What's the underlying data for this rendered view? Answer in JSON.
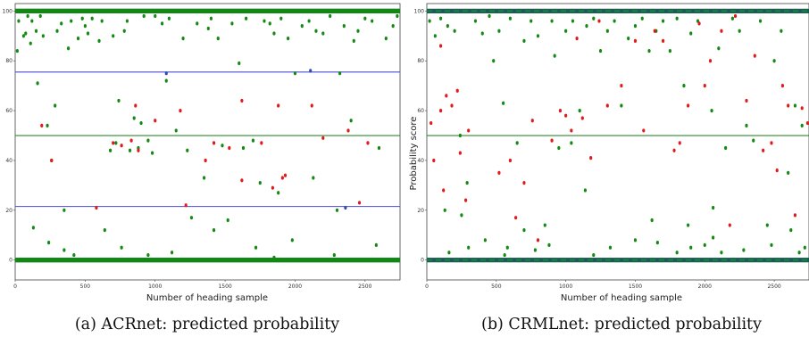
{
  "chart_data": [
    {
      "type": "scatter",
      "caption": "(a) ACRnet: predicted probability",
      "xlabel": "Number of heading sample",
      "ylabel": "",
      "xlim": [
        0,
        2750
      ],
      "ylim": [
        -8,
        103
      ],
      "xticks": [
        0,
        500,
        1000,
        1500,
        2000,
        2500
      ],
      "yticks": [
        0,
        20,
        40,
        60,
        80,
        100
      ],
      "colors": {
        "correct": "#138a13",
        "wrong": "#e01b1b",
        "band": "#1f7a3a",
        "hline_blue": "#4b4bd6",
        "hline_green": "#2d8a2d",
        "outlier": "#2a4fb3"
      },
      "band_color_dark": false,
      "hlines": [
        {
          "y": 75.5,
          "color": "#4b4bd6"
        },
        {
          "y": 50,
          "color": "#2d8a2d"
        },
        {
          "y": 21.5,
          "color": "#4b4bd6"
        }
      ],
      "bands": [
        100,
        0
      ],
      "points_correct": [
        [
          15,
          84
        ],
        [
          25,
          96
        ],
        [
          60,
          90
        ],
        [
          75,
          91
        ],
        [
          90,
          98
        ],
        [
          110,
          87
        ],
        [
          120,
          96
        ],
        [
          150,
          92
        ],
        [
          160,
          71
        ],
        [
          180,
          98
        ],
        [
          200,
          90
        ],
        [
          230,
          54
        ],
        [
          260,
          40
        ],
        [
          285,
          62
        ],
        [
          300,
          92
        ],
        [
          330,
          95
        ],
        [
          350,
          20
        ],
        [
          380,
          85
        ],
        [
          400,
          96
        ],
        [
          450,
          89
        ],
        [
          480,
          97
        ],
        [
          500,
          94
        ],
        [
          520,
          91
        ],
        [
          550,
          97
        ],
        [
          600,
          88
        ],
        [
          620,
          96
        ],
        [
          680,
          44
        ],
        [
          700,
          90
        ],
        [
          720,
          47
        ],
        [
          740,
          64
        ],
        [
          780,
          92
        ],
        [
          800,
          96
        ],
        [
          820,
          44
        ],
        [
          850,
          57
        ],
        [
          880,
          45
        ],
        [
          900,
          55
        ],
        [
          920,
          98
        ],
        [
          950,
          48
        ],
        [
          980,
          43
        ],
        [
          1000,
          98
        ],
        [
          1050,
          95
        ],
        [
          1080,
          72
        ],
        [
          1100,
          97
        ],
        [
          1150,
          52
        ],
        [
          1200,
          89
        ],
        [
          1230,
          44
        ],
        [
          1260,
          17
        ],
        [
          1300,
          95
        ],
        [
          1350,
          33
        ],
        [
          1380,
          93
        ],
        [
          1400,
          97
        ],
        [
          1450,
          89
        ],
        [
          1480,
          46
        ],
        [
          1520,
          16
        ],
        [
          1550,
          95
        ],
        [
          1600,
          79
        ],
        [
          1630,
          45
        ],
        [
          1650,
          97
        ],
        [
          1700,
          48
        ],
        [
          1750,
          31
        ],
        [
          1780,
          96
        ],
        [
          1820,
          95
        ],
        [
          1850,
          91
        ],
        [
          1880,
          27
        ],
        [
          1900,
          97
        ],
        [
          1950,
          89
        ],
        [
          2000,
          75
        ],
        [
          2050,
          94
        ],
        [
          2100,
          96
        ],
        [
          2130,
          33
        ],
        [
          2150,
          92
        ],
        [
          2200,
          91
        ],
        [
          2250,
          98
        ],
        [
          2300,
          20
        ],
        [
          2320,
          75
        ],
        [
          2350,
          94
        ],
        [
          2400,
          56
        ],
        [
          2420,
          88
        ],
        [
          2450,
          92
        ],
        [
          2500,
          97
        ],
        [
          2550,
          96
        ],
        [
          2600,
          45
        ],
        [
          2650,
          89
        ],
        [
          2700,
          94
        ],
        [
          2730,
          98
        ],
        [
          130,
          13
        ],
        [
          240,
          7
        ],
        [
          420,
          2
        ],
        [
          640,
          12
        ],
        [
          760,
          5
        ],
        [
          1120,
          3
        ],
        [
          1420,
          12
        ],
        [
          1720,
          5
        ],
        [
          1980,
          8
        ],
        [
          2280,
          2
        ],
        [
          2580,
          6
        ],
        [
          350,
          4
        ],
        [
          950,
          2
        ],
        [
          1850,
          1
        ]
      ],
      "points_wrong": [
        [
          190,
          54
        ],
        [
          260,
          40
        ],
        [
          580,
          21
        ],
        [
          700,
          47
        ],
        [
          760,
          46
        ],
        [
          830,
          48
        ],
        [
          860,
          62
        ],
        [
          1000,
          56
        ],
        [
          1180,
          60
        ],
        [
          1360,
          40
        ],
        [
          1420,
          47
        ],
        [
          1530,
          45
        ],
        [
          1620,
          32
        ],
        [
          1840,
          29
        ],
        [
          1880,
          62
        ],
        [
          1930,
          34
        ],
        [
          2120,
          62
        ],
        [
          2200,
          49
        ],
        [
          2380,
          52
        ],
        [
          2460,
          23
        ],
        [
          2520,
          47
        ],
        [
          1620,
          64
        ],
        [
          1910,
          33
        ],
        [
          1220,
          22
        ],
        [
          880,
          44
        ],
        [
          1760,
          47
        ]
      ],
      "points_outlier": [
        [
          1080,
          75
        ],
        [
          2110,
          76
        ],
        [
          2360,
          21
        ]
      ]
    },
    {
      "type": "scatter",
      "caption": "(b) CRMLnet: predicted probability",
      "xlabel": "Number of heading sample",
      "ylabel": "Probability score",
      "xlim": [
        0,
        2750
      ],
      "ylim": [
        -8,
        103
      ],
      "xticks": [
        0,
        500,
        1000,
        1500,
        2000,
        2500
      ],
      "yticks": [
        0,
        20,
        40,
        60,
        80,
        100
      ],
      "colors": {
        "correct": "#138a13",
        "wrong": "#e01b1b",
        "band": "#1e5a55",
        "hline_blue": "#4b4bd6",
        "hline_green": "#2d8a2d",
        "outlier": "#2a4fb3"
      },
      "band_color_dark": true,
      "hlines": [
        {
          "y": 50,
          "color": "#2d8a2d"
        }
      ],
      "bands": [
        100,
        0
      ],
      "points_correct": [
        [
          20,
          96
        ],
        [
          60,
          90
        ],
        [
          100,
          97
        ],
        [
          150,
          94
        ],
        [
          200,
          92
        ],
        [
          240,
          50
        ],
        [
          290,
          31
        ],
        [
          300,
          5
        ],
        [
          350,
          96
        ],
        [
          400,
          91
        ],
        [
          450,
          98
        ],
        [
          480,
          80
        ],
        [
          520,
          92
        ],
        [
          550,
          63
        ],
        [
          600,
          97
        ],
        [
          650,
          47
        ],
        [
          700,
          88
        ],
        [
          750,
          96
        ],
        [
          800,
          90
        ],
        [
          850,
          14
        ],
        [
          900,
          96
        ],
        [
          920,
          82
        ],
        [
          950,
          45
        ],
        [
          1000,
          92
        ],
        [
          1050,
          96
        ],
        [
          1100,
          60
        ],
        [
          1150,
          94
        ],
        [
          1200,
          97
        ],
        [
          1250,
          84
        ],
        [
          1300,
          92
        ],
        [
          1350,
          96
        ],
        [
          1400,
          62
        ],
        [
          1450,
          89
        ],
        [
          1500,
          94
        ],
        [
          1550,
          97
        ],
        [
          1600,
          84
        ],
        [
          1650,
          92
        ],
        [
          1700,
          96
        ],
        [
          1750,
          84
        ],
        [
          1800,
          97
        ],
        [
          1850,
          70
        ],
        [
          1900,
          91
        ],
        [
          1950,
          96
        ],
        [
          2000,
          6
        ],
        [
          2050,
          60
        ],
        [
          2100,
          85
        ],
        [
          2150,
          45
        ],
        [
          2200,
          97
        ],
        [
          2250,
          92
        ],
        [
          2300,
          54
        ],
        [
          2350,
          48
        ],
        [
          2400,
          96
        ],
        [
          2450,
          14
        ],
        [
          2500,
          80
        ],
        [
          2550,
          92
        ],
        [
          2600,
          35
        ],
        [
          2650,
          62
        ],
        [
          2700,
          54
        ],
        [
          2720,
          5
        ],
        [
          130,
          20
        ],
        [
          160,
          3
        ],
        [
          250,
          18
        ],
        [
          420,
          8
        ],
        [
          560,
          2
        ],
        [
          700,
          12
        ],
        [
          780,
          4
        ],
        [
          880,
          6
        ],
        [
          1200,
          2
        ],
        [
          1320,
          5
        ],
        [
          1500,
          8
        ],
        [
          1660,
          7
        ],
        [
          1800,
          3
        ],
        [
          1900,
          5
        ],
        [
          2060,
          9
        ],
        [
          2280,
          4
        ],
        [
          2480,
          6
        ],
        [
          2620,
          12
        ],
        [
          2680,
          3
        ],
        [
          1620,
          16
        ],
        [
          2060,
          21
        ],
        [
          1880,
          14
        ],
        [
          580,
          5
        ],
        [
          1040,
          47
        ],
        [
          1140,
          28
        ],
        [
          2120,
          3
        ]
      ],
      "points_wrong": [
        [
          30,
          55
        ],
        [
          50,
          40
        ],
        [
          100,
          86
        ],
        [
          100,
          60
        ],
        [
          120,
          28
        ],
        [
          140,
          66
        ],
        [
          180,
          62
        ],
        [
          220,
          68
        ],
        [
          240,
          43
        ],
        [
          280,
          24
        ],
        [
          300,
          52
        ],
        [
          520,
          35
        ],
        [
          600,
          40
        ],
        [
          640,
          17
        ],
        [
          700,
          31
        ],
        [
          760,
          56
        ],
        [
          800,
          8
        ],
        [
          900,
          48
        ],
        [
          960,
          60
        ],
        [
          1000,
          58
        ],
        [
          1040,
          52
        ],
        [
          1080,
          89
        ],
        [
          1120,
          57
        ],
        [
          1180,
          41
        ],
        [
          1240,
          96
        ],
        [
          1300,
          62
        ],
        [
          1400,
          70
        ],
        [
          1500,
          88
        ],
        [
          1560,
          52
        ],
        [
          1640,
          92
        ],
        [
          1700,
          88
        ],
        [
          1780,
          44
        ],
        [
          1820,
          47
        ],
        [
          1880,
          62
        ],
        [
          1960,
          95
        ],
        [
          2000,
          70
        ],
        [
          2040,
          80
        ],
        [
          2120,
          92
        ],
        [
          2180,
          14
        ],
        [
          2220,
          98
        ],
        [
          2300,
          64
        ],
        [
          2360,
          82
        ],
        [
          2420,
          44
        ],
        [
          2480,
          47
        ],
        [
          2520,
          36
        ],
        [
          2560,
          70
        ],
        [
          2600,
          62
        ],
        [
          2650,
          18
        ],
        [
          2700,
          61
        ],
        [
          2740,
          55
        ]
      ],
      "points_outlier": []
    }
  ]
}
